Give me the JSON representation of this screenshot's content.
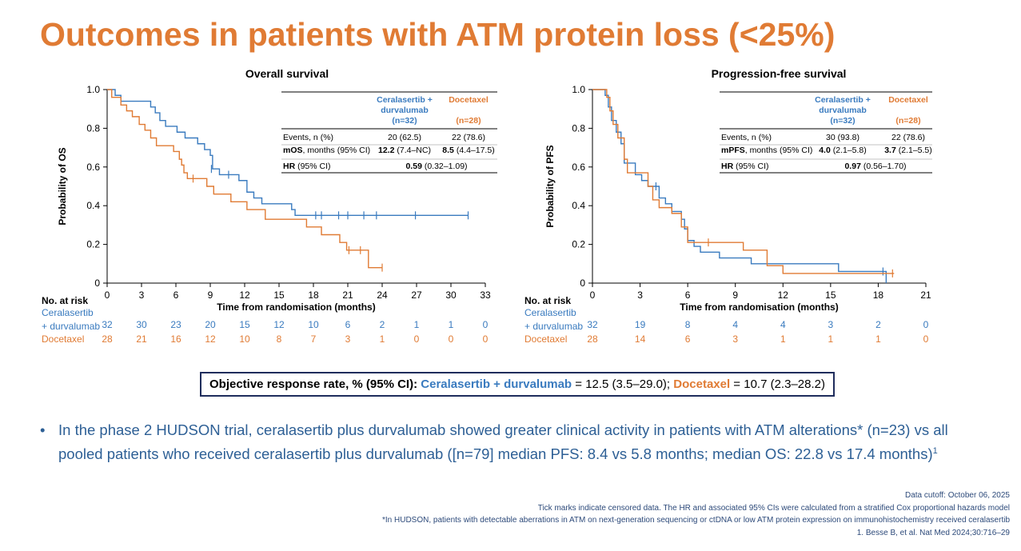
{
  "page": {
    "title": "Outcomes in patients with ATM protein loss (<25%)"
  },
  "colors": {
    "blue": "#3a7bbf",
    "orange": "#e07b34",
    "navy": "#1f2d5c"
  },
  "chart_data": [
    {
      "type": "line",
      "subtype": "kaplan-meier",
      "title": "Overall survival",
      "xlabel": "Time from randomisation (months)",
      "ylabel": "Probability of OS",
      "xlim": [
        0,
        33
      ],
      "ylim": [
        0,
        1.0
      ],
      "xticks": [
        0,
        3,
        6,
        9,
        12,
        15,
        18,
        21,
        24,
        27,
        30,
        33
      ],
      "yticks": [
        "0",
        "0.2",
        "0.4",
        "0.6",
        "0.8",
        "1.0"
      ],
      "series": [
        {
          "name": "Ceralasertib + durvalumab",
          "color": "#3a7bbf",
          "steps": [
            [
              0,
              1.0
            ],
            [
              0.7,
              0.97
            ],
            [
              1.2,
              0.94
            ],
            [
              3.8,
              0.91
            ],
            [
              4.2,
              0.88
            ],
            [
              4.6,
              0.84
            ],
            [
              5.1,
              0.81
            ],
            [
              6.1,
              0.78
            ],
            [
              6.8,
              0.75
            ],
            [
              7.9,
              0.72
            ],
            [
              8.5,
              0.69
            ],
            [
              9.0,
              0.66
            ],
            [
              9.2,
              0.59
            ],
            [
              9.8,
              0.56
            ],
            [
              11.5,
              0.53
            ],
            [
              12.2,
              0.47
            ],
            [
              12.8,
              0.44
            ],
            [
              13.5,
              0.41
            ],
            [
              16.1,
              0.38
            ],
            [
              16.4,
              0.35
            ],
            [
              31.5,
              0.35
            ]
          ],
          "censored": [
            [
              9.1,
              0.59
            ],
            [
              10.6,
              0.56
            ],
            [
              18.2,
              0.35
            ],
            [
              18.7,
              0.35
            ],
            [
              20.2,
              0.35
            ],
            [
              21.0,
              0.35
            ],
            [
              22.4,
              0.35
            ],
            [
              23.5,
              0.35
            ],
            [
              26.9,
              0.35
            ],
            [
              31.5,
              0.35
            ]
          ]
        },
        {
          "name": "Docetaxel",
          "color": "#e07b34",
          "steps": [
            [
              0,
              1.0
            ],
            [
              0.4,
              0.96
            ],
            [
              1.2,
              0.92
            ],
            [
              1.7,
              0.89
            ],
            [
              2.2,
              0.86
            ],
            [
              2.8,
              0.82
            ],
            [
              3.3,
              0.79
            ],
            [
              3.8,
              0.75
            ],
            [
              4.3,
              0.71
            ],
            [
              5.8,
              0.68
            ],
            [
              6.3,
              0.64
            ],
            [
              6.5,
              0.61
            ],
            [
              6.7,
              0.57
            ],
            [
              7.0,
              0.54
            ],
            [
              8.7,
              0.5
            ],
            [
              9.3,
              0.46
            ],
            [
              10.8,
              0.42
            ],
            [
              12.2,
              0.38
            ],
            [
              13.8,
              0.33
            ],
            [
              17.4,
              0.29
            ],
            [
              18.7,
              0.25
            ],
            [
              20.3,
              0.21
            ],
            [
              20.9,
              0.17
            ],
            [
              22.8,
              0.08
            ],
            [
              24.0,
              0.08
            ]
          ],
          "censored": [
            [
              7.5,
              0.54
            ],
            [
              21.1,
              0.17
            ],
            [
              22.1,
              0.17
            ],
            [
              24.0,
              0.08
            ]
          ]
        }
      ],
      "stats_table": {
        "col1": [
          "Ceralasertib +",
          "durvalumab",
          "(n=32)"
        ],
        "col2": [
          "Docetaxel",
          "(n=28)"
        ],
        "rows": [
          {
            "label": "Events, n (%)",
            "label_bold": "",
            "label_rest": "",
            "v1_bold": "",
            "v1": "20 (62.5)",
            "v2_bold": "",
            "v2": "22 (78.6)"
          },
          {
            "label": "",
            "label_bold": "mOS",
            "label_rest": ", months (95% CI)",
            "v1_bold": "12.2",
            "v1": " (7.4–NC)",
            "v2_bold": "8.5",
            "v2": " (4.4–17.5)"
          },
          {
            "label": "",
            "label_bold": "HR",
            "label_rest": " (95% CI)",
            "merged": true,
            "v1_bold": "0.59",
            "v1": " (0.32–1.09)"
          }
        ]
      },
      "at_risk": {
        "header": "No. at risk",
        "rows": [
          {
            "label_lines": [
              "Ceralasertib",
              "+ durvalumab"
            ],
            "color": "#3a7bbf",
            "values": [
              "32",
              "30",
              "23",
              "20",
              "15",
              "12",
              "10",
              "6",
              "2",
              "1",
              "1",
              "0"
            ]
          },
          {
            "label_lines": [
              "Docetaxel"
            ],
            "color": "#e07b34",
            "values": [
              "28",
              "21",
              "16",
              "12",
              "10",
              "8",
              "7",
              "3",
              "1",
              "0",
              "0",
              "0"
            ]
          }
        ]
      }
    },
    {
      "type": "line",
      "subtype": "kaplan-meier",
      "title": "Progression-free survival",
      "xlabel": "Time from randomisation (months)",
      "ylabel": "Probability of PFS",
      "xlim": [
        0,
        21
      ],
      "ylim": [
        0,
        1.0
      ],
      "xticks": [
        0,
        3,
        6,
        9,
        12,
        15,
        18,
        21
      ],
      "yticks": [
        "0",
        "0.2",
        "0.4",
        "0.6",
        "0.8",
        "1.0"
      ],
      "series": [
        {
          "name": "Ceralasertib + durvalumab",
          "color": "#3a7bbf",
          "steps": [
            [
              0,
              1.0
            ],
            [
              0.8,
              0.97
            ],
            [
              1.0,
              0.91
            ],
            [
              1.2,
              0.84
            ],
            [
              1.5,
              0.78
            ],
            [
              1.8,
              0.72
            ],
            [
              2.0,
              0.62
            ],
            [
              2.7,
              0.56
            ],
            [
              3.1,
              0.53
            ],
            [
              3.5,
              0.5
            ],
            [
              4.2,
              0.44
            ],
            [
              4.6,
              0.41
            ],
            [
              5.0,
              0.37
            ],
            [
              5.6,
              0.33
            ],
            [
              5.8,
              0.28
            ],
            [
              6.0,
              0.22
            ],
            [
              6.4,
              0.19
            ],
            [
              6.8,
              0.16
            ],
            [
              8.0,
              0.13
            ],
            [
              10.0,
              0.1
            ],
            [
              15.5,
              0.06
            ],
            [
              18.5,
              0.06
            ],
            [
              18.5,
              0.0
            ]
          ],
          "censored": [
            [
              4.0,
              0.5
            ],
            [
              18.3,
              0.06
            ]
          ]
        },
        {
          "name": "Docetaxel",
          "color": "#e07b34",
          "steps": [
            [
              0,
              1.0
            ],
            [
              0.9,
              0.96
            ],
            [
              1.1,
              0.89
            ],
            [
              1.3,
              0.82
            ],
            [
              1.6,
              0.75
            ],
            [
              2.0,
              0.64
            ],
            [
              2.2,
              0.57
            ],
            [
              3.5,
              0.5
            ],
            [
              3.8,
              0.43
            ],
            [
              4.2,
              0.39
            ],
            [
              5.0,
              0.36
            ],
            [
              5.6,
              0.29
            ],
            [
              6.0,
              0.21
            ],
            [
              9.5,
              0.17
            ],
            [
              11.0,
              0.09
            ],
            [
              12.0,
              0.05
            ],
            [
              19.0,
              0.05
            ]
          ],
          "censored": [
            [
              7.3,
              0.21
            ],
            [
              18.9,
              0.05
            ]
          ]
        }
      ],
      "stats_table": {
        "col1": [
          "Ceralasertib +",
          "durvalumab",
          "(n=32)"
        ],
        "col2": [
          "Docetaxel",
          "(n=28)"
        ],
        "rows": [
          {
            "label": "Events, n (%)",
            "label_bold": "",
            "label_rest": "",
            "v1_bold": "",
            "v1": "30 (93.8)",
            "v2_bold": "",
            "v2": "22 (78.6)"
          },
          {
            "label": "",
            "label_bold": "mPFS",
            "label_rest": ", months (95% CI)",
            "v1_bold": "4.0",
            "v1": " (2.1–5.8)",
            "v2_bold": "3.7",
            "v2": " (2.1–5.5)"
          },
          {
            "label": "",
            "label_bold": "HR",
            "label_rest": " (95% CI)",
            "merged": true,
            "v1_bold": "0.97",
            "v1": " (0.56–1.70)"
          }
        ]
      },
      "at_risk": {
        "header": "No. at risk",
        "rows": [
          {
            "label_lines": [
              "Ceralasertib",
              "+ durvalumab"
            ],
            "color": "#3a7bbf",
            "values": [
              "32",
              "19",
              "8",
              "4",
              "4",
              "3",
              "2",
              "0"
            ]
          },
          {
            "label_lines": [
              "Docetaxel"
            ],
            "color": "#e07b34",
            "values": [
              "28",
              "14",
              "6",
              "3",
              "1",
              "1",
              "1",
              "0"
            ]
          }
        ]
      }
    }
  ],
  "orr": {
    "label": "Objective response rate, % (95% CI):",
    "arm1": "Ceralasertib + durvalumab",
    "arm1_value": " = 12.5 (3.5–29.0); ",
    "arm2": "Docetaxel",
    "arm2_value": " = 10.7 (2.3–28.2)"
  },
  "bullet": {
    "dot": "•",
    "text": "In the phase 2 HUDSON trial, ceralasertib plus durvalumab showed greater clinical activity in patients with ATM alterations* (n=23) vs all pooled patients who received ceralasertib plus durvalumab ([n=79] median PFS: 8.4 vs 5.8 months; median OS: 22.8 vs 17.4 months)",
    "ref": "1"
  },
  "footnotes": [
    "Data cutoff: October 06, 2025",
    "Tick marks indicate censored data. The HR and associated 95% CIs were calculated from a stratified Cox proportional hazards model",
    "*In HUDSON, patients with detectable aberrations in ATM on next-generation sequencing or ctDNA or low ATM protein expression on immunohistochemistry received ceralasertib",
    "1. Besse B, et al. Nat Med 2024;30:716–29"
  ]
}
